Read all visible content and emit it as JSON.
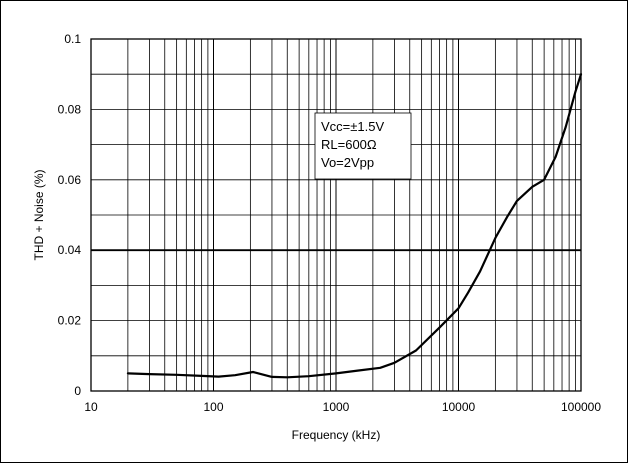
{
  "chart_data": {
    "type": "line",
    "title": "",
    "xlabel": "Frequency (kHz)",
    "ylabel": "THD + Noise (%)",
    "xscale": "log",
    "xlim": [
      10,
      100000
    ],
    "ylim": [
      0,
      0.1
    ],
    "grid": true,
    "legend": "none",
    "x_ticks": [
      {
        "v": 10,
        "label": "10"
      },
      {
        "v": 100,
        "label": "100"
      },
      {
        "v": 1000,
        "label": "1000"
      },
      {
        "v": 10000,
        "label": "10000"
      },
      {
        "v": 100000,
        "label": "100000"
      }
    ],
    "y_ticks": [
      {
        "v": 0,
        "label": "0"
      },
      {
        "v": 0.02,
        "label": "0.02"
      },
      {
        "v": 0.04,
        "label": "0.04"
      },
      {
        "v": 0.06,
        "label": "0.06"
      },
      {
        "v": 0.08,
        "label": "0.08"
      },
      {
        "v": 0.1,
        "label": "0.1"
      }
    ],
    "annotation": [
      "Vcc=±1.5V",
      "RL=600Ω",
      "Vo=2Vpp"
    ],
    "series": [
      {
        "color": "#000000",
        "x": [
          20,
          30,
          50,
          80,
          110,
          150,
          210,
          300,
          400,
          600,
          1000,
          1500,
          2300,
          3000,
          4500,
          7000,
          10000,
          12000,
          15000,
          20000,
          25000,
          30000,
          40000,
          50000,
          62000,
          75000,
          90000,
          100000
        ],
        "y": [
          0.005,
          0.0048,
          0.0046,
          0.0043,
          0.0041,
          0.0045,
          0.0054,
          0.004,
          0.0039,
          0.0042,
          0.005,
          0.0058,
          0.0066,
          0.008,
          0.0115,
          0.018,
          0.0235,
          0.028,
          0.034,
          0.0435,
          0.0495,
          0.054,
          0.058,
          0.06,
          0.0665,
          0.075,
          0.085,
          0.09
        ]
      }
    ]
  }
}
